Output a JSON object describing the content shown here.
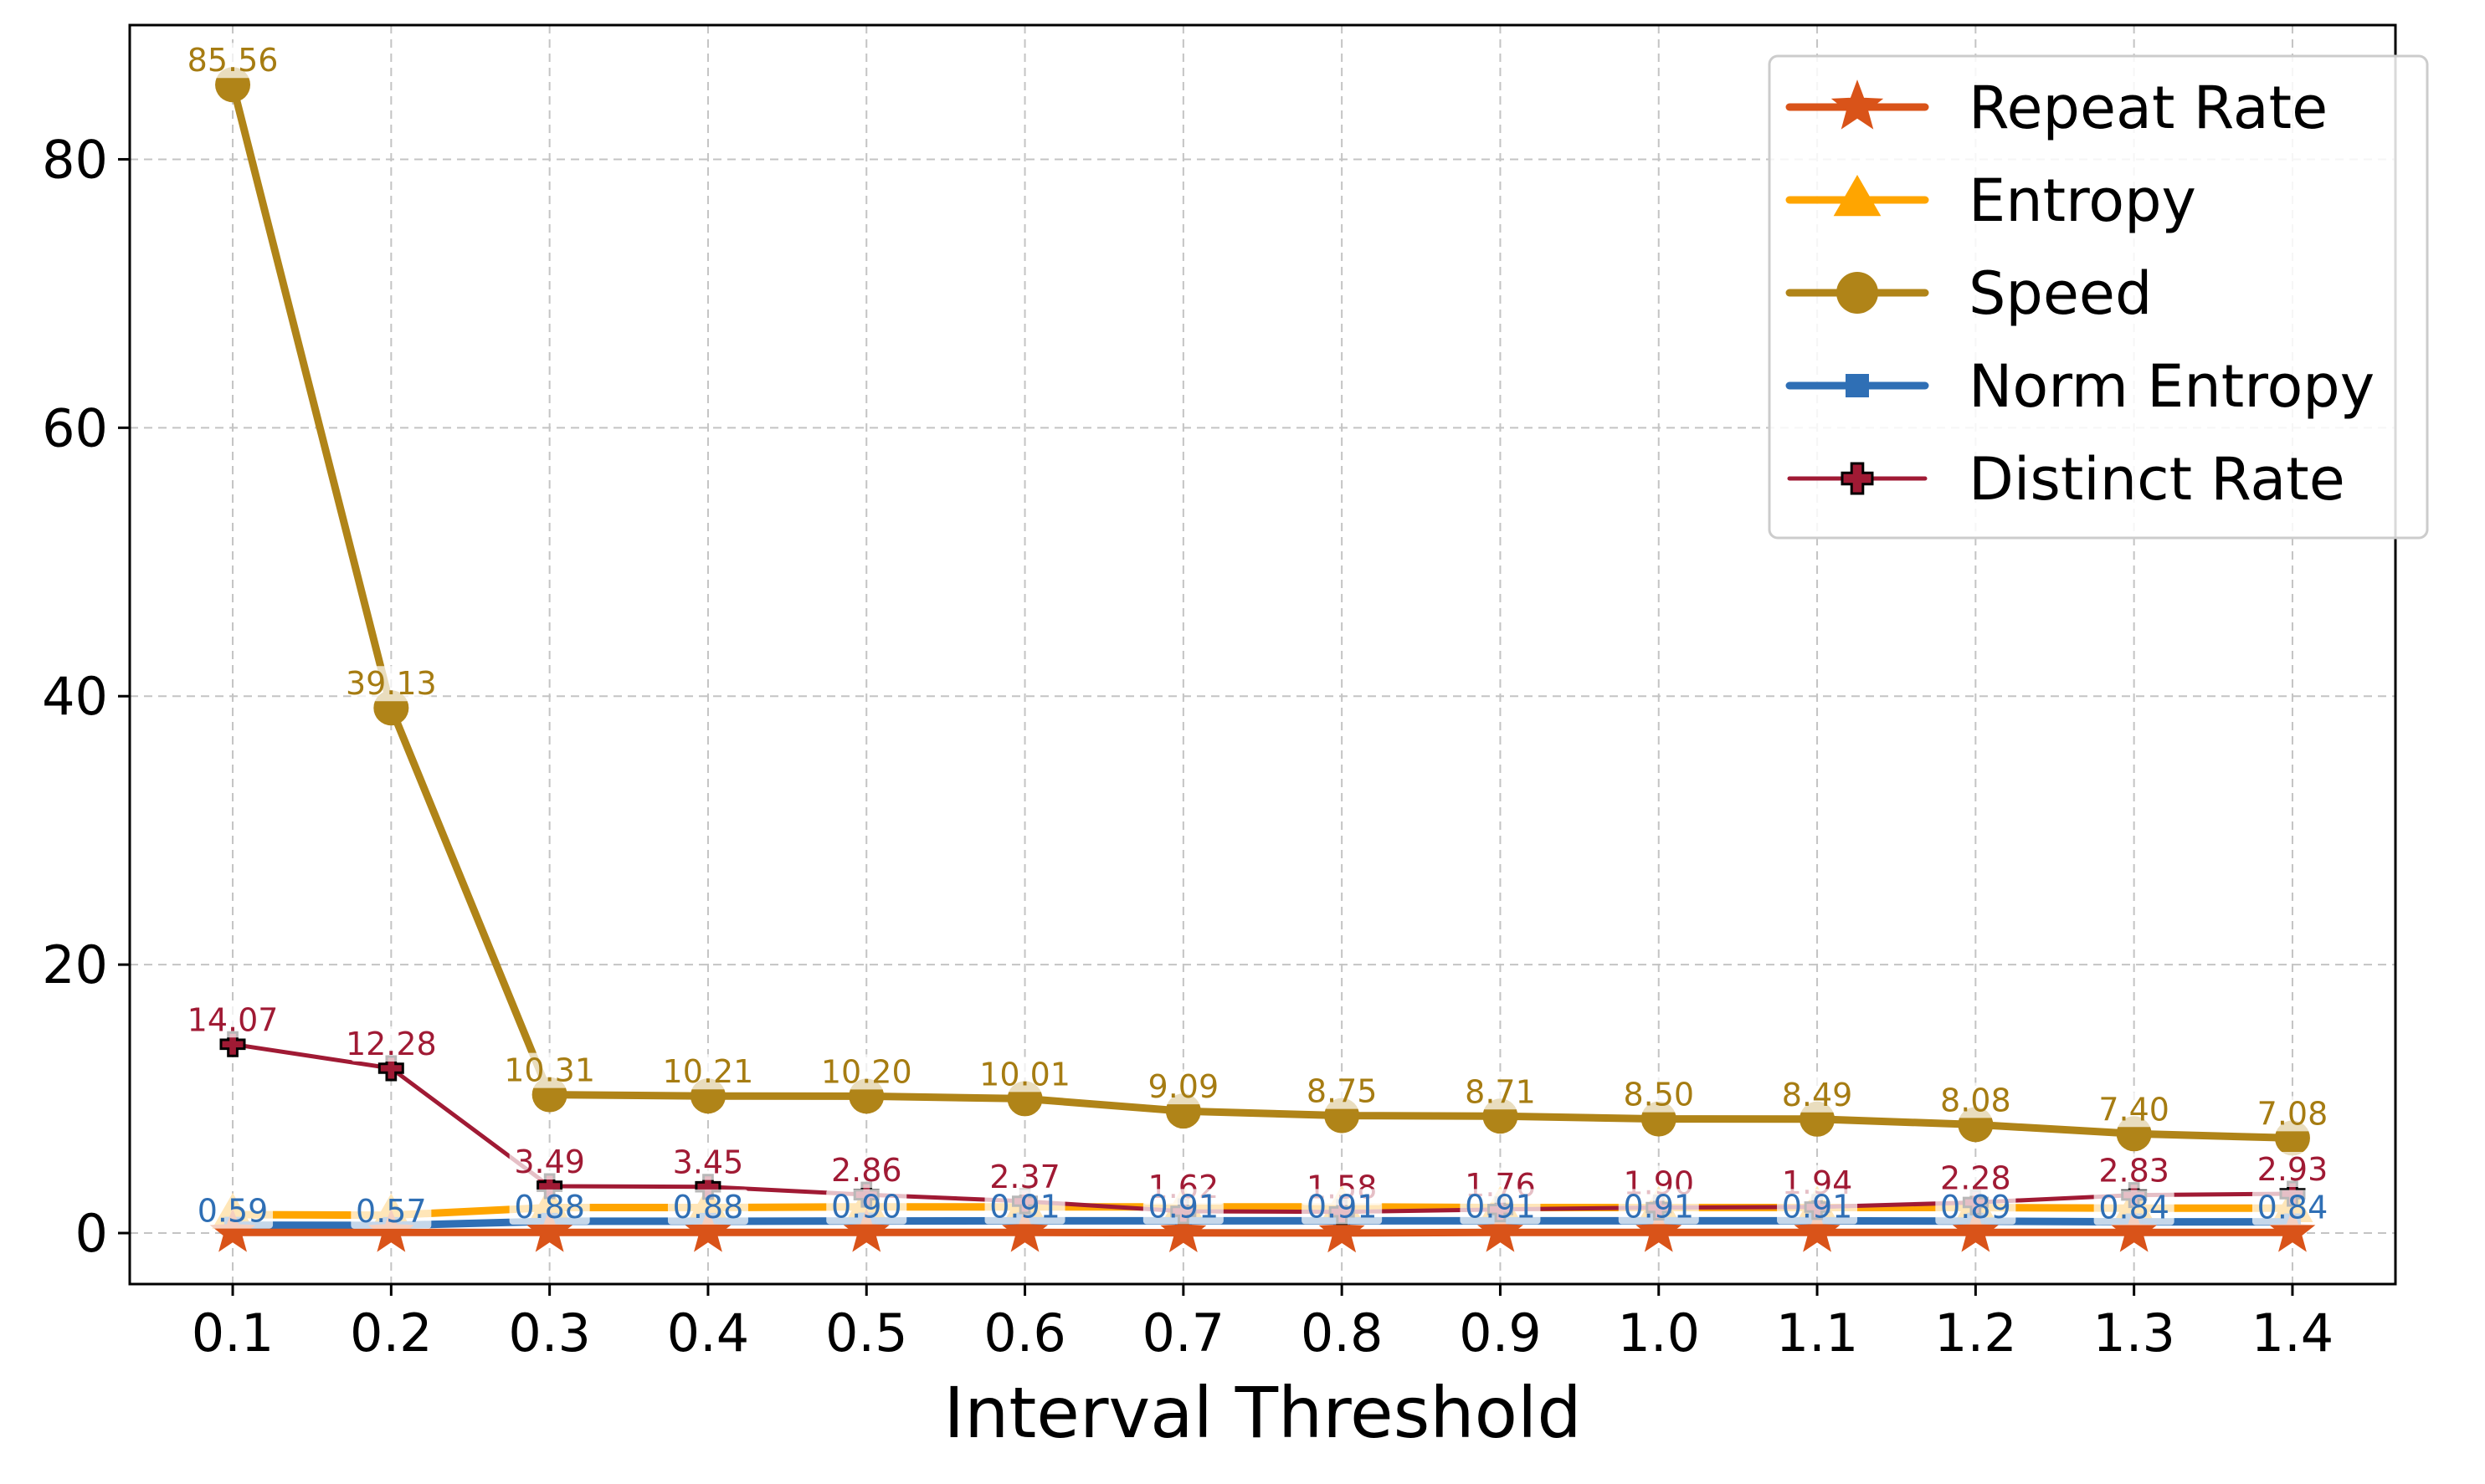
{
  "chart_data": {
    "type": "line",
    "xlabel": "Interval Threshold",
    "ylabel": "",
    "x": [
      0.1,
      0.2,
      0.3,
      0.4,
      0.5,
      0.6,
      0.7,
      0.8,
      0.9,
      1.0,
      1.1,
      1.2,
      1.3,
      1.4
    ],
    "x_tick_labels": [
      "0.1",
      "0.2",
      "0.3",
      "0.4",
      "0.5",
      "0.6",
      "0.7",
      "0.8",
      "0.9",
      "1.0",
      "1.1",
      "1.2",
      "1.3",
      "1.4"
    ],
    "y_ticks": [
      0,
      20,
      40,
      60,
      80
    ],
    "y_tick_labels": [
      "0",
      "20",
      "40",
      "60",
      "80"
    ],
    "ylim": [
      -3.8,
      90
    ],
    "grid": true,
    "legend_position": "top-right",
    "series": [
      {
        "name": "Repeat Rate",
        "color": "#d95319",
        "marker": "star",
        "values": [
          0.05,
          0.05,
          0.05,
          0.05,
          0.05,
          0.05,
          0.02,
          0.01,
          0.05,
          0.05,
          0.05,
          0.05,
          0.05,
          0.05
        ],
        "labels": []
      },
      {
        "name": "Entropy",
        "color": "#ffa500",
        "marker": "triangle",
        "values": [
          1.37,
          1.33,
          1.9,
          1.9,
          1.95,
          1.95,
          1.95,
          1.95,
          1.9,
          1.9,
          1.9,
          1.9,
          1.85,
          1.85
        ],
        "labels": []
      },
      {
        "name": "Speed",
        "color": "#b08418",
        "label_color": "#a67c12",
        "marker": "circle",
        "values": [
          85.56,
          39.13,
          10.31,
          10.21,
          10.2,
          10.01,
          9.09,
          8.75,
          8.71,
          8.5,
          8.49,
          8.08,
          7.4,
          7.08
        ],
        "labels": [
          "85.56",
          "39.13",
          "10.31",
          "10.21",
          "10.20",
          "10.01",
          "9.09",
          "8.75",
          "8.71",
          "8.50",
          "8.49",
          "8.08",
          "7.40",
          "7.08"
        ]
      },
      {
        "name": "Norm Entropy",
        "color": "#2f6fb5",
        "label_color": "#2f6fb5",
        "marker": "square",
        "values": [
          0.59,
          0.57,
          0.88,
          0.88,
          0.9,
          0.91,
          0.91,
          0.91,
          0.91,
          0.91,
          0.91,
          0.89,
          0.84,
          0.84
        ],
        "labels": [
          "0.59",
          "0.57",
          "0.88",
          "0.88",
          "0.90",
          "0.91",
          "0.91",
          "0.91",
          "0.91",
          "0.91",
          "0.91",
          "0.89",
          "0.84",
          "0.84"
        ]
      },
      {
        "name": "Distinct Rate",
        "color": "#a01a34",
        "label_color": "#a01a34",
        "marker": "plus",
        "values": [
          14.07,
          12.28,
          3.49,
          3.45,
          2.86,
          2.37,
          1.62,
          1.58,
          1.76,
          1.9,
          1.94,
          2.28,
          2.83,
          2.93
        ],
        "labels": [
          "14.07",
          "12.28",
          "3.49",
          "3.45",
          "2.86",
          "2.37",
          "1.62",
          "1.58",
          "1.76",
          "1.90",
          "1.94",
          "2.28",
          "2.83",
          "2.93"
        ]
      }
    ]
  }
}
